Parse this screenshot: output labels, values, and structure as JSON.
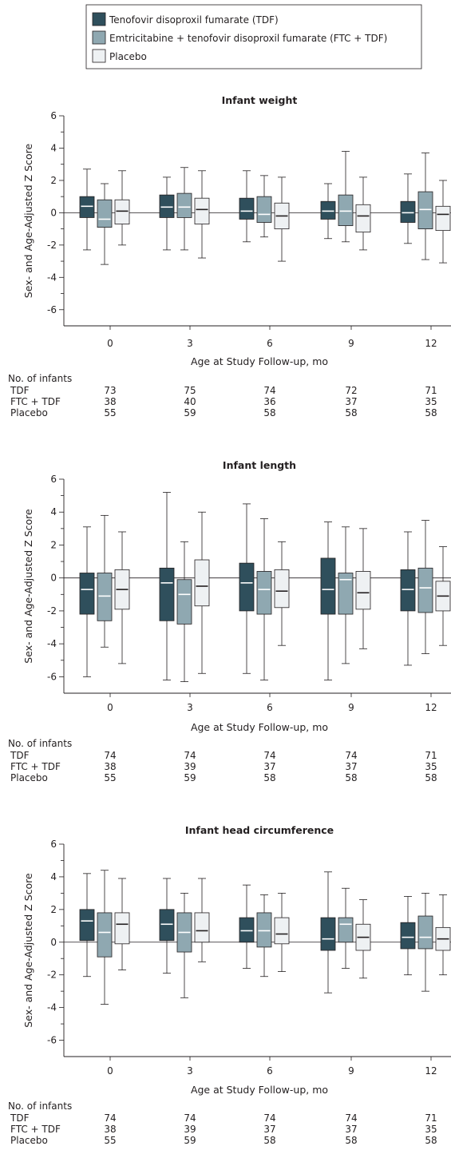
{
  "legend": {
    "items": [
      {
        "label": "Tenofovir disoproxil fumarate (TDF)",
        "color": "#2f4f5c"
      },
      {
        "label": "Emtricitabine + tenofovir disoproxil fumarate (FTC + TDF)",
        "color": "#8fa8b1"
      },
      {
        "label": "Placebo",
        "color": "#eef1f3"
      }
    ]
  },
  "chart_data": [
    {
      "type": "box",
      "title": "Infant weight",
      "xlabel": "Age at Study Follow-up, mo",
      "ylabel": "Sex- and Age-Adjusted Z Score",
      "ylim": [
        -7,
        6
      ],
      "yticks": [
        "6",
        "4",
        "2",
        "0",
        "-2",
        "-4",
        "-6"
      ],
      "categories": [
        "0",
        "3",
        "6",
        "9",
        "12"
      ],
      "series": [
        {
          "name": "TDF",
          "boxes": [
            {
              "min": -2.3,
              "q1": -0.3,
              "median": 0.4,
              "q3": 1.0,
              "max": 2.7
            },
            {
              "min": -2.3,
              "q1": -0.3,
              "median": 0.35,
              "q3": 1.1,
              "max": 2.2
            },
            {
              "min": -1.8,
              "q1": -0.4,
              "median": 0.1,
              "q3": 0.9,
              "max": 2.6
            },
            {
              "min": -1.6,
              "q1": -0.4,
              "median": 0.1,
              "q3": 0.7,
              "max": 1.8
            },
            {
              "min": -1.9,
              "q1": -0.6,
              "median": 0.0,
              "q3": 0.7,
              "max": 2.4
            }
          ]
        },
        {
          "name": "FTC + TDF",
          "boxes": [
            {
              "min": -3.2,
              "q1": -0.9,
              "median": -0.4,
              "q3": 0.8,
              "max": 1.8
            },
            {
              "min": -2.3,
              "q1": -0.3,
              "median": 0.35,
              "q3": 1.2,
              "max": 2.8
            },
            {
              "min": -1.5,
              "q1": -0.6,
              "median": -0.1,
              "q3": 1.0,
              "max": 2.3
            },
            {
              "min": -1.8,
              "q1": -0.8,
              "median": 0.1,
              "q3": 1.1,
              "max": 3.8
            },
            {
              "min": -2.9,
              "q1": -1.0,
              "median": 0.2,
              "q3": 1.3,
              "max": 3.7
            }
          ]
        },
        {
          "name": "Placebo",
          "boxes": [
            {
              "min": -2.0,
              "q1": -0.7,
              "median": 0.1,
              "q3": 0.8,
              "max": 2.6
            },
            {
              "min": -2.8,
              "q1": -0.7,
              "median": 0.2,
              "q3": 0.9,
              "max": 2.6
            },
            {
              "min": -3.0,
              "q1": -1.0,
              "median": -0.2,
              "q3": 0.6,
              "max": 2.2
            },
            {
              "min": -2.3,
              "q1": -1.2,
              "median": -0.2,
              "q3": 0.5,
              "max": 2.2
            },
            {
              "min": -3.1,
              "q1": -1.1,
              "median": -0.1,
              "q3": 0.4,
              "max": 2.0
            }
          ]
        }
      ],
      "counts": {
        "label": "No. of infants",
        "rows": [
          {
            "name": "TDF",
            "values": [
              "73",
              "75",
              "74",
              "72",
              "71"
            ]
          },
          {
            "name": "FTC + TDF",
            "values": [
              "38",
              "40",
              "36",
              "37",
              "35"
            ]
          },
          {
            "name": "Placebo",
            "values": [
              "55",
              "59",
              "58",
              "58",
              "58"
            ]
          }
        ]
      }
    },
    {
      "type": "box",
      "title": "Infant length",
      "xlabel": "Age at Study Follow-up, mo",
      "ylabel": "Sex- and Age-Adjusted Z Score",
      "ylim": [
        -7,
        6
      ],
      "yticks": [
        "6",
        "4",
        "2",
        "0",
        "-2",
        "-4",
        "-6"
      ],
      "categories": [
        "0",
        "3",
        "6",
        "9",
        "12"
      ],
      "series": [
        {
          "name": "TDF",
          "boxes": [
            {
              "min": -6.0,
              "q1": -2.2,
              "median": -0.7,
              "q3": 0.3,
              "max": 3.1
            },
            {
              "min": -6.2,
              "q1": -2.6,
              "median": -0.3,
              "q3": 0.6,
              "max": 5.2
            },
            {
              "min": -5.8,
              "q1": -2.0,
              "median": -0.3,
              "q3": 0.9,
              "max": 4.5
            },
            {
              "min": -6.2,
              "q1": -2.2,
              "median": -0.7,
              "q3": 1.2,
              "max": 3.4
            },
            {
              "min": -5.3,
              "q1": -2.0,
              "median": -0.7,
              "q3": 0.5,
              "max": 2.8
            }
          ]
        },
        {
          "name": "FTC + TDF",
          "boxes": [
            {
              "min": -4.2,
              "q1": -2.6,
              "median": -1.1,
              "q3": 0.3,
              "max": 3.8
            },
            {
              "min": -6.3,
              "q1": -2.8,
              "median": -1.0,
              "q3": -0.1,
              "max": 2.2
            },
            {
              "min": -6.2,
              "q1": -2.2,
              "median": -0.7,
              "q3": 0.4,
              "max": 3.6
            },
            {
              "min": -5.2,
              "q1": -2.2,
              "median": -0.1,
              "q3": 0.3,
              "max": 3.1
            },
            {
              "min": -4.6,
              "q1": -2.1,
              "median": -0.6,
              "q3": 0.6,
              "max": 3.5
            }
          ]
        },
        {
          "name": "Placebo",
          "boxes": [
            {
              "min": -5.2,
              "q1": -1.9,
              "median": -0.7,
              "q3": 0.5,
              "max": 2.8
            },
            {
              "min": -5.8,
              "q1": -1.7,
              "median": -0.5,
              "q3": 1.1,
              "max": 4.0
            },
            {
              "min": -4.1,
              "q1": -1.8,
              "median": -0.8,
              "q3": 0.5,
              "max": 2.2
            },
            {
              "min": -4.3,
              "q1": -1.9,
              "median": -0.9,
              "q3": 0.4,
              "max": 3.0
            },
            {
              "min": -4.1,
              "q1": -2.0,
              "median": -1.1,
              "q3": -0.2,
              "max": 1.9
            }
          ]
        }
      ],
      "counts": {
        "label": "No. of infants",
        "rows": [
          {
            "name": "TDF",
            "values": [
              "74",
              "74",
              "74",
              "74",
              "71"
            ]
          },
          {
            "name": "FTC + TDF",
            "values": [
              "38",
              "39",
              "37",
              "37",
              "35"
            ]
          },
          {
            "name": "Placebo",
            "values": [
              "55",
              "59",
              "58",
              "58",
              "58"
            ]
          }
        ]
      }
    },
    {
      "type": "box",
      "title": "Infant head circumference",
      "xlabel": "Age at Study Follow-up, mo",
      "ylabel": "Sex- and Age-Adjusted Z Score",
      "ylim": [
        -7,
        6
      ],
      "yticks": [
        "6",
        "4",
        "2",
        "0",
        "-2",
        "-4",
        "-6"
      ],
      "categories": [
        "0",
        "3",
        "6",
        "9",
        "12"
      ],
      "series": [
        {
          "name": "TDF",
          "boxes": [
            {
              "min": -2.1,
              "q1": 0.1,
              "median": 1.3,
              "q3": 2.0,
              "max": 4.2
            },
            {
              "min": -1.9,
              "q1": 0.1,
              "median": 1.1,
              "q3": 2.0,
              "max": 3.9
            },
            {
              "min": -1.6,
              "q1": 0.0,
              "median": 0.7,
              "q3": 1.5,
              "max": 3.5
            },
            {
              "min": -3.1,
              "q1": -0.5,
              "median": 0.2,
              "q3": 1.5,
              "max": 4.3
            },
            {
              "min": -2.0,
              "q1": -0.4,
              "median": 0.3,
              "q3": 1.2,
              "max": 2.8
            }
          ]
        },
        {
          "name": "FTC + TDF",
          "boxes": [
            {
              "min": -3.8,
              "q1": -0.9,
              "median": 0.6,
              "q3": 1.8,
              "max": 4.4
            },
            {
              "min": -3.4,
              "q1": -0.6,
              "median": 0.6,
              "q3": 1.8,
              "max": 3.0
            },
            {
              "min": -2.1,
              "q1": -0.3,
              "median": 0.7,
              "q3": 1.8,
              "max": 2.9
            },
            {
              "min": -1.6,
              "q1": 0.0,
              "median": 1.1,
              "q3": 1.5,
              "max": 3.3
            },
            {
              "min": -3.0,
              "q1": -0.4,
              "median": 0.3,
              "q3": 1.6,
              "max": 3.0
            }
          ]
        },
        {
          "name": "Placebo",
          "boxes": [
            {
              "min": -1.7,
              "q1": -0.1,
              "median": 1.1,
              "q3": 1.8,
              "max": 3.9
            },
            {
              "min": -1.2,
              "q1": 0.0,
              "median": 0.7,
              "q3": 1.8,
              "max": 3.9
            },
            {
              "min": -1.8,
              "q1": -0.1,
              "median": 0.5,
              "q3": 1.5,
              "max": 3.0
            },
            {
              "min": -2.2,
              "q1": -0.5,
              "median": 0.3,
              "q3": 1.1,
              "max": 2.6
            },
            {
              "min": -2.0,
              "q1": -0.5,
              "median": 0.2,
              "q3": 0.9,
              "max": 2.9
            }
          ]
        }
      ],
      "counts": {
        "label": "No. of infants",
        "rows": [
          {
            "name": "TDF",
            "values": [
              "74",
              "74",
              "74",
              "74",
              "71"
            ]
          },
          {
            "name": "FTC + TDF",
            "values": [
              "38",
              "39",
              "37",
              "37",
              "35"
            ]
          },
          {
            "name": "Placebo",
            "values": [
              "55",
              "59",
              "58",
              "58",
              "58"
            ]
          }
        ]
      }
    }
  ]
}
